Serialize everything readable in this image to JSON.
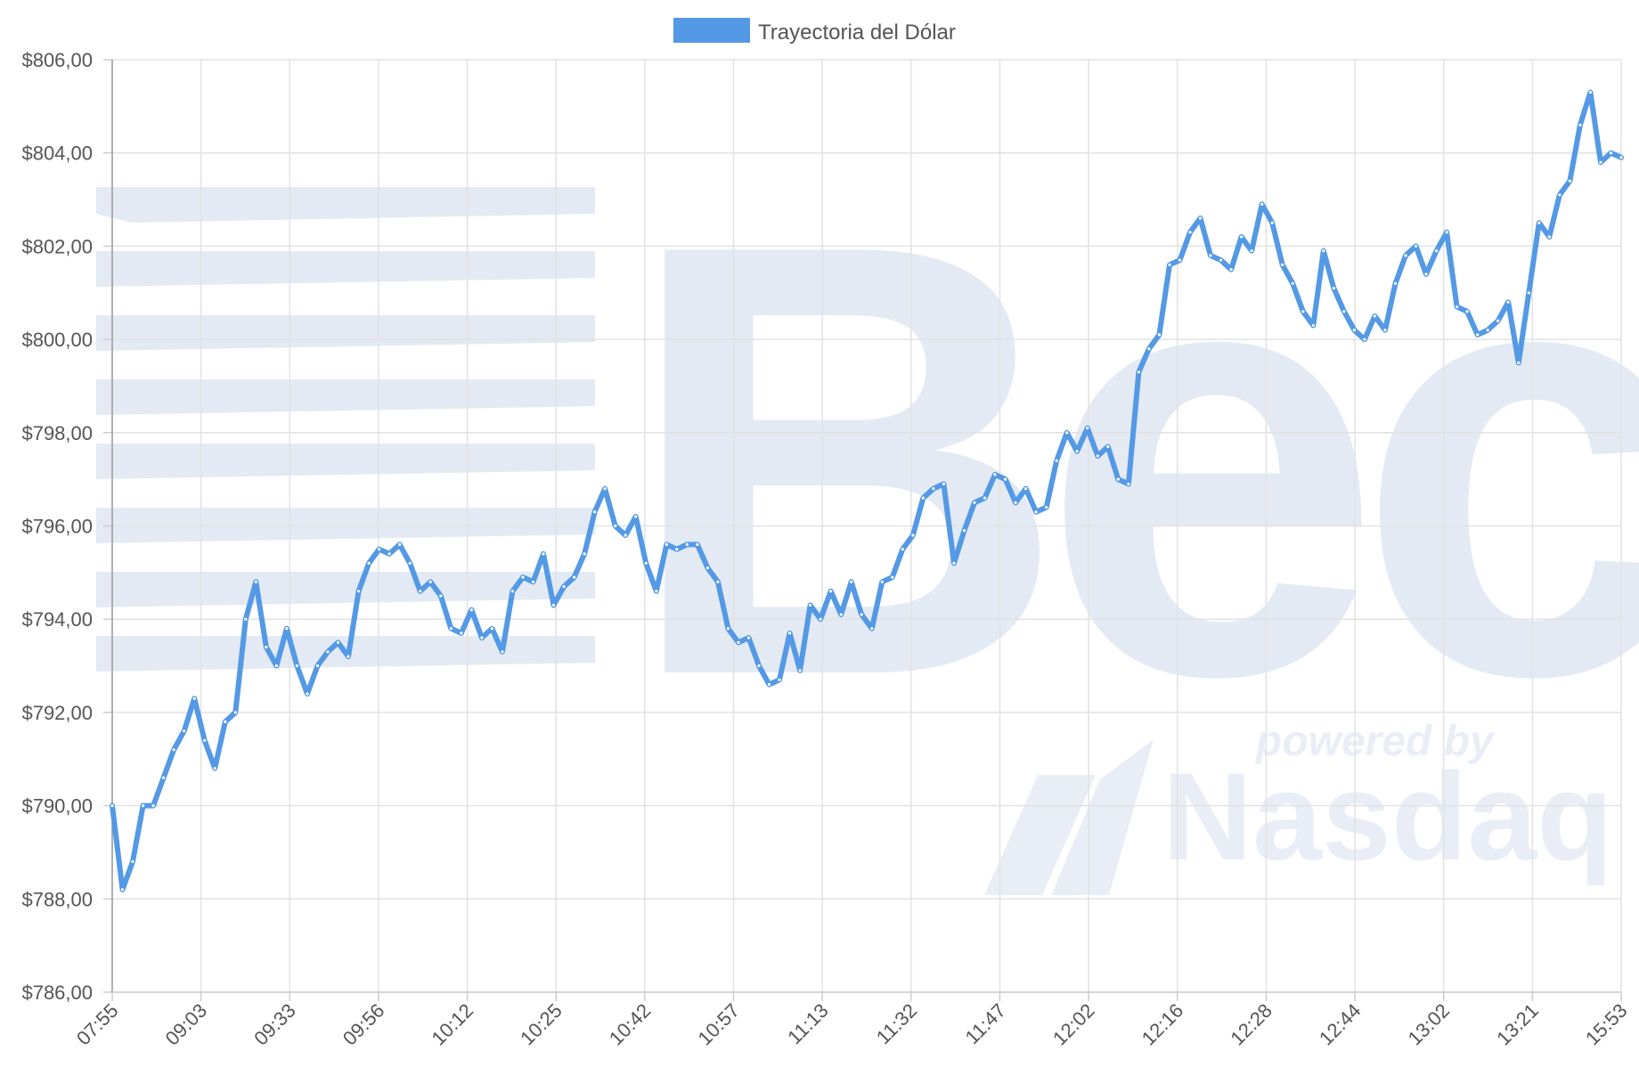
{
  "chart_data": {
    "type": "line",
    "legend": {
      "label": "Trayectoria del Dólar",
      "position": "top-center"
    },
    "series": [
      {
        "name": "Trayectoria del Dólar",
        "color": "#5499e5",
        "values": [
          790.0,
          788.2,
          788.8,
          790.0,
          790.0,
          790.6,
          791.2,
          791.6,
          792.3,
          791.4,
          790.8,
          791.8,
          792.0,
          794.0,
          794.8,
          793.4,
          793.0,
          793.8,
          793.0,
          792.4,
          793.0,
          793.3,
          793.5,
          793.2,
          794.6,
          795.2,
          795.5,
          795.4,
          795.6,
          795.2,
          794.6,
          794.8,
          794.5,
          793.8,
          793.7,
          794.2,
          793.6,
          793.8,
          793.3,
          794.6,
          794.9,
          794.8,
          795.4,
          794.3,
          794.7,
          794.9,
          795.4,
          796.3,
          796.8,
          796.0,
          795.8,
          796.2,
          795.2,
          794.6,
          795.6,
          795.5,
          795.6,
          795.6,
          795.1,
          794.8,
          793.8,
          793.5,
          793.6,
          793.0,
          792.6,
          792.7,
          793.7,
          792.9,
          794.3,
          794.0,
          794.6,
          794.1,
          794.8,
          794.1,
          793.8,
          794.8,
          794.9,
          795.5,
          795.8,
          796.6,
          796.8,
          796.9,
          795.2,
          795.9,
          796.5,
          796.6,
          797.1,
          797.0,
          796.5,
          796.8,
          796.3,
          796.4,
          797.4,
          798.0,
          797.6,
          798.1,
          797.5,
          797.7,
          797.0,
          796.9,
          799.3,
          799.8,
          800.1,
          801.6,
          801.7,
          802.3,
          802.6,
          801.8,
          801.7,
          801.5,
          802.2,
          801.9,
          802.9,
          802.5,
          801.6,
          801.2,
          800.6,
          800.3,
          801.9,
          801.1,
          800.6,
          800.2,
          800.0,
          800.5,
          800.2,
          801.2,
          801.8,
          802.0,
          801.4,
          801.9,
          802.3,
          800.7,
          800.6,
          800.1,
          800.2,
          800.4,
          800.8,
          799.5,
          801.0,
          802.5,
          802.2,
          803.1,
          803.4,
          804.6,
          805.3,
          803.8,
          804.0,
          803.9
        ]
      }
    ],
    "x_start_label": "07:55",
    "x_end_label": "15:53",
    "xticks": [
      "07:55",
      "09:03",
      "09:33",
      "09:56",
      "10:12",
      "10:25",
      "10:42",
      "10:57",
      "11:13",
      "11:32",
      "11:47",
      "12:02",
      "12:16",
      "12:28",
      "12:44",
      "13:02",
      "13:21",
      "15:53"
    ],
    "yticks": [
      "$786,00",
      "$788,00",
      "$790,00",
      "$792,00",
      "$794,00",
      "$796,00",
      "$798,00",
      "$800,00",
      "$802,00",
      "$804,00",
      "$806,00"
    ],
    "ylim": [
      786,
      806
    ],
    "grid": true
  },
  "watermark": {
    "brand": "Bec",
    "tagline": "powered by",
    "partner": "Nasdaq",
    "color": "#e3eaf4"
  }
}
